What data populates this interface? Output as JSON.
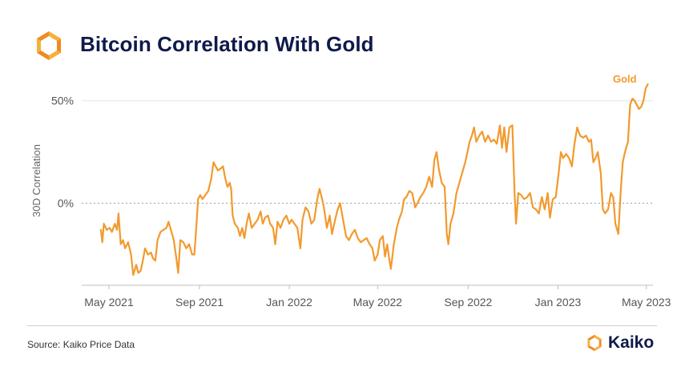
{
  "header": {
    "title": "Bitcoin Correlation With Gold"
  },
  "footer": {
    "source": "Source: Kaiko Price Data",
    "brand": "Kaiko"
  },
  "colors": {
    "accent": "#F29A2E",
    "title": "#0F1A4A"
  },
  "icons": [
    "kaiko-logo-icon"
  ],
  "chart_data": {
    "type": "line",
    "title": "Bitcoin Correlation With Gold",
    "xlabel": "",
    "ylabel": "30D Correlation",
    "x_range": [
      "2021-03-25",
      "2023-05-10"
    ],
    "ylim": [
      -40,
      62
    ],
    "y_ticks": [
      {
        "value": 0,
        "label": "0%"
      },
      {
        "value": 50,
        "label": "50%"
      }
    ],
    "x_ticks": [
      {
        "date": "2021-05-01",
        "label": "May 2021"
      },
      {
        "date": "2021-09-01",
        "label": "Sep 2021"
      },
      {
        "date": "2022-01-01",
        "label": "Jan 2022"
      },
      {
        "date": "2022-05-01",
        "label": "May 2022"
      },
      {
        "date": "2022-09-01",
        "label": "Sep 2022"
      },
      {
        "date": "2023-01-01",
        "label": "Jan 2023"
      },
      {
        "date": "2023-05-01",
        "label": "May 2023"
      }
    ],
    "reference_line": {
      "value": 0,
      "style": "dotted"
    },
    "grid": {
      "horizontal": "50% only",
      "vertical": false
    },
    "legend": "inline label at end of series",
    "series": [
      {
        "name": "Gold",
        "points": [
          [
            "2021-04-20",
            -13
          ],
          [
            "2021-04-22",
            -19
          ],
          [
            "2021-04-24",
            -10
          ],
          [
            "2021-04-28",
            -13
          ],
          [
            "2021-05-02",
            -12
          ],
          [
            "2021-05-05",
            -14
          ],
          [
            "2021-05-09",
            -10
          ],
          [
            "2021-05-12",
            -13
          ],
          [
            "2021-05-14",
            -5
          ],
          [
            "2021-05-17",
            -20
          ],
          [
            "2021-05-20",
            -18
          ],
          [
            "2021-05-23",
            -22
          ],
          [
            "2021-05-27",
            -19
          ],
          [
            "2021-05-31",
            -25
          ],
          [
            "2021-06-03",
            -35
          ],
          [
            "2021-06-07",
            -30
          ],
          [
            "2021-06-10",
            -34
          ],
          [
            "2021-06-13",
            -33
          ],
          [
            "2021-06-16",
            -28
          ],
          [
            "2021-06-19",
            -22
          ],
          [
            "2021-06-23",
            -25
          ],
          [
            "2021-06-27",
            -24
          ],
          [
            "2021-06-30",
            -27
          ],
          [
            "2021-07-03",
            -28
          ],
          [
            "2021-07-06",
            -18
          ],
          [
            "2021-07-10",
            -14
          ],
          [
            "2021-07-14",
            -13
          ],
          [
            "2021-07-18",
            -12
          ],
          [
            "2021-07-21",
            -9
          ],
          [
            "2021-07-25",
            -14
          ],
          [
            "2021-07-28",
            -18
          ],
          [
            "2021-08-01",
            -28
          ],
          [
            "2021-08-03",
            -34
          ],
          [
            "2021-08-06",
            -18
          ],
          [
            "2021-08-10",
            -19
          ],
          [
            "2021-08-14",
            -22
          ],
          [
            "2021-08-18",
            -20
          ],
          [
            "2021-08-22",
            -25
          ],
          [
            "2021-08-25",
            -25
          ],
          [
            "2021-08-28",
            -10
          ],
          [
            "2021-08-30",
            2
          ],
          [
            "2021-09-02",
            4
          ],
          [
            "2021-09-05",
            2
          ],
          [
            "2021-09-09",
            4
          ],
          [
            "2021-09-13",
            6
          ],
          [
            "2021-09-17",
            12
          ],
          [
            "2021-09-20",
            20
          ],
          [
            "2021-09-23",
            18
          ],
          [
            "2021-09-26",
            16
          ],
          [
            "2021-09-30",
            17
          ],
          [
            "2021-10-03",
            18
          ],
          [
            "2021-10-06",
            12
          ],
          [
            "2021-10-09",
            8
          ],
          [
            "2021-10-12",
            10
          ],
          [
            "2021-10-14",
            7
          ],
          [
            "2021-10-16",
            -6
          ],
          [
            "2021-10-19",
            -10
          ],
          [
            "2021-10-23",
            -12
          ],
          [
            "2021-10-26",
            -16
          ],
          [
            "2021-10-29",
            -12
          ],
          [
            "2021-11-01",
            -17
          ],
          [
            "2021-11-04",
            -10
          ],
          [
            "2021-11-07",
            -5
          ],
          [
            "2021-11-11",
            -12
          ],
          [
            "2021-11-15",
            -10
          ],
          [
            "2021-11-19",
            -8
          ],
          [
            "2021-11-23",
            -4
          ],
          [
            "2021-11-26",
            -10
          ],
          [
            "2021-11-29",
            -7
          ],
          [
            "2021-12-03",
            -6
          ],
          [
            "2021-12-06",
            -10
          ],
          [
            "2021-12-10",
            -12
          ],
          [
            "2021-12-13",
            -20
          ],
          [
            "2021-12-16",
            -9
          ],
          [
            "2021-12-20",
            -12
          ],
          [
            "2021-12-24",
            -8
          ],
          [
            "2021-12-28",
            -6
          ],
          [
            "2022-01-01",
            -10
          ],
          [
            "2022-01-04",
            -8
          ],
          [
            "2022-01-08",
            -10
          ],
          [
            "2022-01-12",
            -12
          ],
          [
            "2022-01-16",
            -22
          ],
          [
            "2022-01-19",
            -8
          ],
          [
            "2022-01-23",
            -2
          ],
          [
            "2022-01-27",
            -4
          ],
          [
            "2022-01-31",
            -10
          ],
          [
            "2022-02-04",
            -8
          ],
          [
            "2022-02-08",
            2
          ],
          [
            "2022-02-11",
            7
          ],
          [
            "2022-02-14",
            3
          ],
          [
            "2022-02-17",
            -2
          ],
          [
            "2022-02-21",
            -12
          ],
          [
            "2022-02-25",
            -6
          ],
          [
            "2022-02-28",
            -15
          ],
          [
            "2022-03-03",
            -10
          ],
          [
            "2022-03-07",
            -4
          ],
          [
            "2022-03-11",
            0
          ],
          [
            "2022-03-15",
            -8
          ],
          [
            "2022-03-19",
            -16
          ],
          [
            "2022-03-23",
            -18
          ],
          [
            "2022-03-27",
            -15
          ],
          [
            "2022-03-31",
            -13
          ],
          [
            "2022-04-04",
            -17
          ],
          [
            "2022-04-08",
            -19
          ],
          [
            "2022-04-12",
            -18
          ],
          [
            "2022-04-16",
            -17
          ],
          [
            "2022-04-20",
            -20
          ],
          [
            "2022-04-24",
            -22
          ],
          [
            "2022-04-27",
            -28
          ],
          [
            "2022-05-01",
            -25
          ],
          [
            "2022-05-04",
            -18
          ],
          [
            "2022-05-08",
            -16
          ],
          [
            "2022-05-11",
            -26
          ],
          [
            "2022-05-14",
            -20
          ],
          [
            "2022-05-17",
            -28
          ],
          [
            "2022-05-19",
            -32
          ],
          [
            "2022-05-23",
            -20
          ],
          [
            "2022-05-27",
            -12
          ],
          [
            "2022-05-30",
            -8
          ],
          [
            "2022-06-03",
            -4
          ],
          [
            "2022-06-06",
            2
          ],
          [
            "2022-06-09",
            3
          ],
          [
            "2022-06-13",
            6
          ],
          [
            "2022-06-17",
            5
          ],
          [
            "2022-06-21",
            -2
          ],
          [
            "2022-06-24",
            0
          ],
          [
            "2022-06-28",
            3
          ],
          [
            "2022-07-02",
            5
          ],
          [
            "2022-07-06",
            8
          ],
          [
            "2022-07-10",
            13
          ],
          [
            "2022-07-14",
            8
          ],
          [
            "2022-07-17",
            21
          ],
          [
            "2022-07-20",
            25
          ],
          [
            "2022-07-23",
            17
          ],
          [
            "2022-07-27",
            10
          ],
          [
            "2022-07-31",
            8
          ],
          [
            "2022-08-03",
            -15
          ],
          [
            "2022-08-05",
            -20
          ],
          [
            "2022-08-08",
            -10
          ],
          [
            "2022-08-12",
            -5
          ],
          [
            "2022-08-16",
            5
          ],
          [
            "2022-08-20",
            10
          ],
          [
            "2022-08-24",
            15
          ],
          [
            "2022-08-28",
            20
          ],
          [
            "2022-08-31",
            25
          ],
          [
            "2022-09-03",
            30
          ],
          [
            "2022-09-06",
            33
          ],
          [
            "2022-09-09",
            37
          ],
          [
            "2022-09-12",
            30
          ],
          [
            "2022-09-16",
            33
          ],
          [
            "2022-09-20",
            35
          ],
          [
            "2022-09-24",
            30
          ],
          [
            "2022-09-28",
            33
          ],
          [
            "2022-10-02",
            30
          ],
          [
            "2022-10-06",
            31
          ],
          [
            "2022-10-10",
            29
          ],
          [
            "2022-10-14",
            38
          ],
          [
            "2022-10-17",
            27
          ],
          [
            "2022-10-20",
            37
          ],
          [
            "2022-10-23",
            25
          ],
          [
            "2022-10-27",
            37
          ],
          [
            "2022-10-31",
            38
          ],
          [
            "2022-11-03",
            5
          ],
          [
            "2022-11-05",
            -10
          ],
          [
            "2022-11-08",
            5
          ],
          [
            "2022-11-12",
            4
          ],
          [
            "2022-11-16",
            2
          ],
          [
            "2022-11-20",
            3
          ],
          [
            "2022-11-24",
            5
          ],
          [
            "2022-11-28",
            -2
          ],
          [
            "2022-12-02",
            -3
          ],
          [
            "2022-12-06",
            -5
          ],
          [
            "2022-12-10",
            3
          ],
          [
            "2022-12-14",
            -3
          ],
          [
            "2022-12-18",
            5
          ],
          [
            "2022-12-21",
            -7
          ],
          [
            "2022-12-25",
            2
          ],
          [
            "2022-12-29",
            3
          ],
          [
            "2023-01-02",
            15
          ],
          [
            "2023-01-05",
            25
          ],
          [
            "2023-01-08",
            22
          ],
          [
            "2023-01-12",
            24
          ],
          [
            "2023-01-16",
            22
          ],
          [
            "2023-01-20",
            18
          ],
          [
            "2023-01-23",
            28
          ],
          [
            "2023-01-27",
            37
          ],
          [
            "2023-01-31",
            33
          ],
          [
            "2023-02-04",
            32
          ],
          [
            "2023-02-08",
            33
          ],
          [
            "2023-02-12",
            30
          ],
          [
            "2023-02-15",
            31
          ],
          [
            "2023-02-18",
            20
          ],
          [
            "2023-02-21",
            22
          ],
          [
            "2023-02-24",
            25
          ],
          [
            "2023-02-28",
            15
          ],
          [
            "2023-03-03",
            -3
          ],
          [
            "2023-03-06",
            -5
          ],
          [
            "2023-03-10",
            -3
          ],
          [
            "2023-03-14",
            5
          ],
          [
            "2023-03-17",
            3
          ],
          [
            "2023-03-20",
            -10
          ],
          [
            "2023-03-24",
            -15
          ],
          [
            "2023-03-27",
            5
          ],
          [
            "2023-03-30",
            20
          ],
          [
            "2023-04-02",
            25
          ],
          [
            "2023-04-06",
            30
          ],
          [
            "2023-04-09",
            48
          ],
          [
            "2023-04-12",
            51
          ],
          [
            "2023-04-15",
            50
          ],
          [
            "2023-04-18",
            48
          ],
          [
            "2023-04-21",
            46
          ],
          [
            "2023-04-24",
            47
          ],
          [
            "2023-04-27",
            50
          ],
          [
            "2023-04-30",
            56
          ],
          [
            "2023-05-03",
            58
          ]
        ]
      }
    ]
  }
}
